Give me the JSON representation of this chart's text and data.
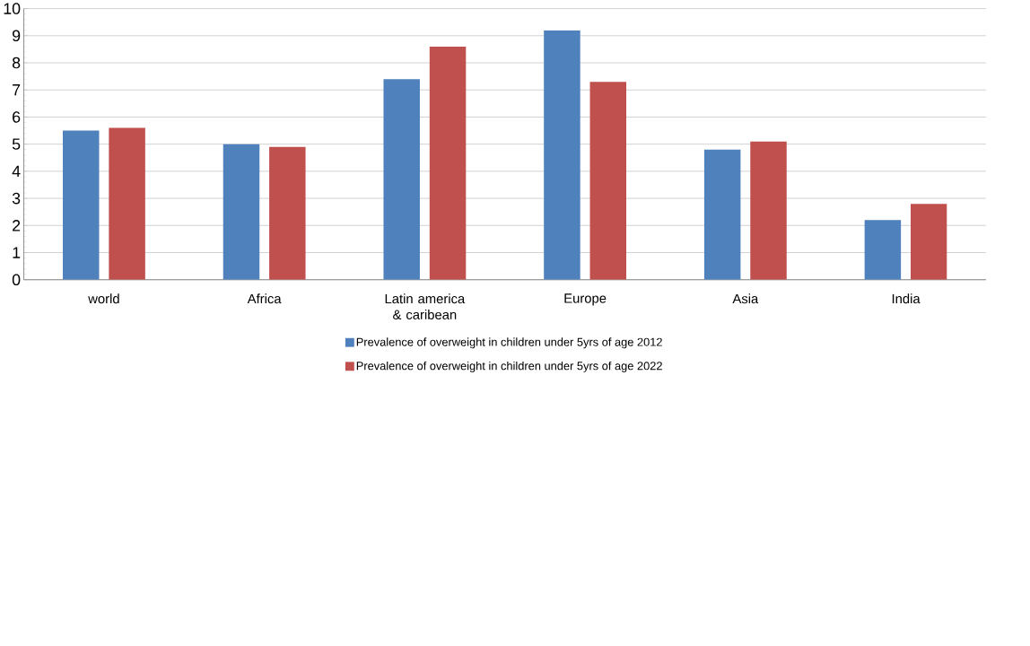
{
  "chart_data": {
    "type": "bar",
    "categories": [
      "world",
      "Africa",
      "Latin america & caribean",
      "Europe",
      "Asia",
      "India"
    ],
    "series": [
      {
        "name": "Prevalence of overweight in children under 5yrs of age 2012",
        "color": "#4f81bd",
        "values": [
          5.5,
          5.0,
          7.4,
          9.2,
          4.8,
          2.2
        ]
      },
      {
        "name": "Prevalence of overweight in children under 5yrs of age 2022",
        "color": "#c0504d",
        "values": [
          5.6,
          4.9,
          8.6,
          7.3,
          5.1,
          2.8
        ]
      }
    ],
    "ylim": [
      0,
      10
    ],
    "yticks": [
      0,
      1,
      2,
      3,
      4,
      5,
      6,
      7,
      8,
      9,
      10
    ],
    "grid": "y",
    "legend": "bottom"
  }
}
